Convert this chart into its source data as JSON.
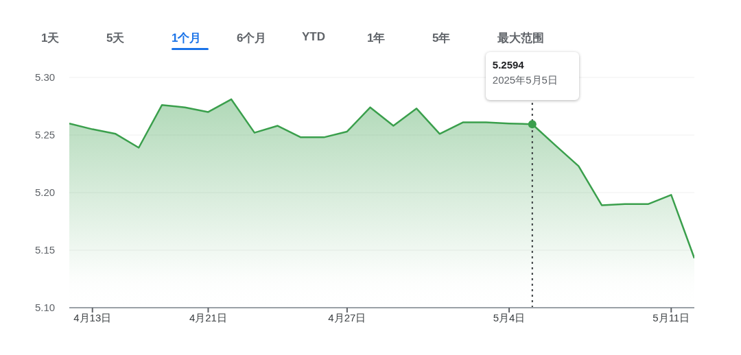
{
  "chart_data": {
    "type": "area",
    "categories": [
      null,
      "4月13日",
      null,
      null,
      null,
      null,
      "4月21日",
      null,
      null,
      null,
      null,
      null,
      "4月27日",
      null,
      null,
      null,
      null,
      null,
      null,
      "5月4日",
      null,
      null,
      null,
      null,
      null,
      null,
      "5月11日",
      null
    ],
    "series": [
      {
        "color": "#3a9f4c",
        "values": [
          5.26,
          5.255,
          5.251,
          5.239,
          5.276,
          5.274,
          5.27,
          5.281,
          5.252,
          5.258,
          5.248,
          5.248,
          5.253,
          5.274,
          5.258,
          5.273,
          5.251,
          5.261,
          5.261,
          5.26,
          5.2594,
          5.241,
          5.223,
          5.189,
          5.19,
          5.19,
          5.198,
          5.143
        ]
      }
    ],
    "ylim": [
      5.1,
      5.3
    ],
    "yticks": [
      {
        "value": 5.1,
        "label": "5.10"
      },
      {
        "value": 5.15,
        "label": "5.15"
      },
      {
        "value": 5.2,
        "label": "5.20"
      },
      {
        "value": 5.25,
        "label": "5.25"
      },
      {
        "value": 5.3,
        "label": "5.30"
      }
    ],
    "grid": "y",
    "legend": false,
    "annotations": [
      "5.2594",
      "2025年5月5日",
      "1天",
      "5天",
      "1个月",
      "6个月",
      "YTD",
      "1年",
      "5年",
      "最大范围"
    ]
  }
}
